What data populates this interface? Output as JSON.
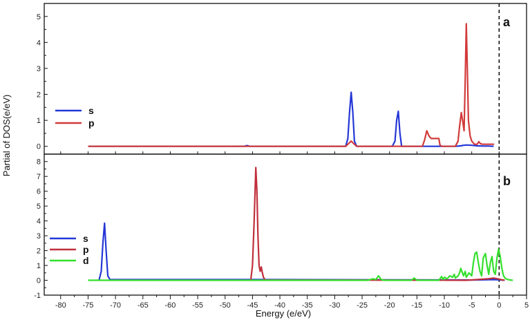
{
  "chart_data": {
    "type": "line",
    "ylabel": "Partial of DOS(e/eV)",
    "xlabel": "Energy (e/eV)",
    "xlim": [
      -83,
      5
    ],
    "xticks": [
      -80,
      -75,
      -70,
      -65,
      -60,
      -55,
      -50,
      -45,
      -40,
      -35,
      -30,
      -25,
      -20,
      -15,
      -10,
      -5,
      0,
      5
    ],
    "fermi_level": 0,
    "panels": [
      {
        "label": "a",
        "ylim": [
          -0.3,
          5.5
        ],
        "yticks": [
          0,
          1,
          2,
          3,
          4,
          5
        ],
        "legend_position": "left",
        "series": [
          {
            "name": "s",
            "color": "#2437d6",
            "x": [
              -75,
              -46.5,
              -46.0,
              -45.5,
              -28.0,
              -27.6,
              -27.3,
              -27.0,
              -26.7,
              -26.4,
              -26.0,
              -19.5,
              -19.0,
              -18.7,
              -18.4,
              -18.1,
              -17.8,
              -17.0,
              -8.0,
              -7.0,
              -6.5,
              -6.0,
              -5.0,
              -4.0,
              -3.0,
              -2.0,
              -1.0
            ],
            "y": [
              0,
              0,
              0.03,
              0,
              0,
              0.3,
              1.3,
              2.08,
              1.3,
              0.2,
              0,
              0,
              0.2,
              1.0,
              1.35,
              0.5,
              0,
              0,
              0,
              0.02,
              0.04,
              0.05,
              0.04,
              0.02,
              0.01,
              0.01,
              0
            ]
          },
          {
            "name": "p",
            "color": "#d23a3a",
            "x": [
              -75,
              -28.0,
              -27.5,
              -27.0,
              -26.5,
              -26.0,
              -14.0,
              -13.6,
              -13.2,
              -12.8,
              -12.4,
              -11.5,
              -11.0,
              -10.8,
              -10.5,
              -8.0,
              -7.5,
              -7.2,
              -6.9,
              -6.6,
              -6.4,
              -6.2,
              -6.0,
              -5.8,
              -5.6,
              -5.3,
              -5.0,
              -4.5,
              -4.0,
              -3.7,
              -3.4,
              -3.0,
              -1.0,
              -0.9
            ],
            "y": [
              0,
              0,
              0.1,
              0.2,
              0.1,
              0,
              0,
              0.25,
              0.6,
              0.4,
              0.3,
              0.3,
              0.3,
              0.05,
              0,
              0,
              0.2,
              0.8,
              1.3,
              0.9,
              0.6,
              2.5,
              4.72,
              3.0,
              1.0,
              0.4,
              0.2,
              0.08,
              0.08,
              0.18,
              0.1,
              0.08,
              0.08,
              0.08
            ]
          }
        ]
      },
      {
        "label": "b",
        "ylim": [
          -1,
          8.5
        ],
        "yticks": [
          -1,
          0,
          1,
          2,
          3,
          4,
          5,
          6,
          7,
          8
        ],
        "legend_position": "left",
        "series": [
          {
            "name": "s",
            "color": "#2437d6",
            "x": [
              -73.0,
              -72.6,
              -72.3,
              -72.0,
              -71.7,
              -71.4,
              -71.0,
              -44.0,
              -5.0,
              -3.0,
              -1.0,
              0.0,
              1.0
            ],
            "y": [
              0,
              0.6,
              2.5,
              3.85,
              2.0,
              0.3,
              0.05,
              0.05,
              0.02,
              0.03,
              0.05,
              0.03,
              0
            ]
          },
          {
            "name": "p",
            "color": "#c02f3c",
            "x": [
              -45.3,
              -45.0,
              -44.7,
              -44.4,
              -44.2,
              -44.0,
              -43.8,
              -43.6,
              -43.4,
              -43.2,
              -43.0,
              -42.7,
              -6.0,
              -4.0,
              -2.0,
              -1.0,
              0.0,
              0.5,
              1.0
            ],
            "y": [
              0.05,
              1.0,
              4.0,
              7.6,
              6.0,
              3.0,
              1.0,
              0.6,
              0.9,
              0.5,
              0.2,
              0.02,
              0,
              0.05,
              0.1,
              0.15,
              0.08,
              0.03,
              0
            ]
          },
          {
            "name": "d",
            "color": "#33e02c",
            "x": [
              -75,
              -24.0,
              -23.0,
              -22.5,
              -22.0,
              -21.5,
              -21.0,
              -16.0,
              -15.5,
              -15.0,
              -11.0,
              -10.5,
              -10.2,
              -10.0,
              -9.5,
              -9.0,
              -8.5,
              -8.2,
              -8.0,
              -7.5,
              -7.2,
              -7.0,
              -6.5,
              -6.2,
              -6.0,
              -5.5,
              -5.0,
              -4.7,
              -4.4,
              -4.1,
              -3.8,
              -3.5,
              -3.2,
              -2.9,
              -2.5,
              -2.2,
              -1.9,
              -1.6,
              -1.3,
              -1.0,
              -0.7,
              -0.4,
              -0.1,
              0.2,
              0.5,
              0.8,
              1.2,
              1.6,
              2.0,
              2.5
            ],
            "y": [
              0,
              0,
              0.1,
              0.05,
              0.3,
              0.05,
              0,
              0,
              0.15,
              0,
              0,
              0.25,
              0.05,
              0.2,
              0.1,
              0.3,
              0.2,
              0.4,
              0.15,
              0.3,
              0.5,
              0.8,
              0.3,
              0.6,
              0.2,
              0.5,
              0.3,
              1.2,
              1.8,
              1.9,
              1.2,
              0.6,
              0.3,
              1.5,
              1.8,
              1.0,
              0.4,
              1.2,
              1.6,
              0.6,
              0.4,
              1.5,
              2.1,
              1.6,
              0.8,
              0.3,
              0.1,
              0.05,
              0.02,
              0
            ]
          }
        ]
      }
    ]
  }
}
